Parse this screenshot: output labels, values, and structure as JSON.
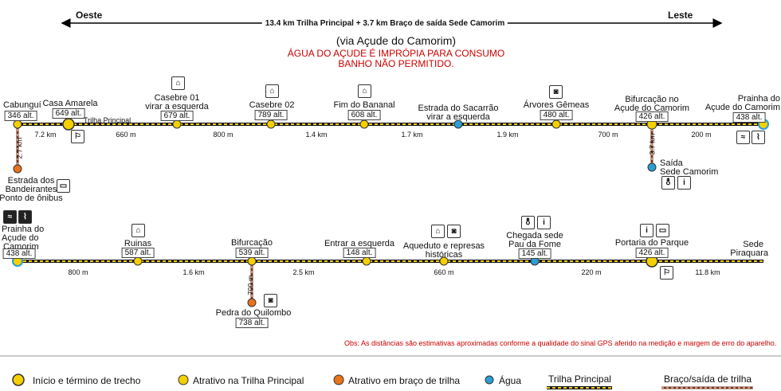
{
  "header": {
    "west": "Oeste",
    "east": "Leste",
    "total": "13.4 km Trilha Principal + 3.7 km Braço de saída Sede Camorim",
    "via": "(via Açude do Camorim)",
    "warning1": "ÁGUA DO AÇUDE É IMPRÓPIA PARA CONSUMO",
    "warning2": "BANHO NÃO PERMITIDO."
  },
  "row1": {
    "cabungui": {
      "name": "Cabunguí",
      "alt": "346 alt."
    },
    "casa_amarela": {
      "name": "Casa Amarela",
      "alt": "649 alt."
    },
    "trilha_label": "Trilha Principal",
    "casebre01": {
      "name1": "Casebre 01",
      "name2": "virar a esquerda",
      "alt": "679 alt."
    },
    "casebre02": {
      "name": "Casebre 02",
      "alt": "789 alt."
    },
    "bananal": {
      "name": "Fim do Bananal",
      "alt": "608 alt."
    },
    "sacarrao": {
      "name1": "Estrada do Sacarrão",
      "name2": "virar a esquerda"
    },
    "gemeas": {
      "name": "Árvores Gêmeas",
      "alt": "480 alt."
    },
    "bifurcacao": {
      "name1": "Bifurcação no",
      "name2": "Açude do Camorim",
      "alt": "426 alt."
    },
    "prainha": {
      "name1": "Prainha do",
      "name2": "Açude do Camorim",
      "alt": "438 alt."
    },
    "bandeirantes": {
      "name1": "Estrada dos",
      "name2": "Bandeirantes",
      "name3": "Ponto de ônibus"
    },
    "saida": {
      "name1": "Saída",
      "name2": "Sede Camorim"
    },
    "distances": [
      "7.2 km",
      "660 m",
      "800 m",
      "1.4 km",
      "1.7 km",
      "1.9 km",
      "700 m",
      "200 m"
    ],
    "branch_left": "2.7 km",
    "branch_right": "3.7 km"
  },
  "row2": {
    "prainha": {
      "name1": "Prainha do",
      "name2": "Açude do",
      "name3": "Camorim",
      "alt": "438 alt."
    },
    "ruinas": {
      "name": "Ruinas",
      "alt": "587 alt."
    },
    "bifurcacao": {
      "name": "Bifurcação",
      "alt": "539 alt."
    },
    "esquerda": {
      "name": "Entrar a esquerda",
      "alt": "148 alt."
    },
    "aqueduto": {
      "name1": "Aqueduto e represas",
      "name2": "históricas"
    },
    "pau_fome": {
      "name1": "Chegada sede",
      "name2": "Pau da Fome",
      "alt": "145 alt."
    },
    "portaria": {
      "name": "Portaria do Parque",
      "alt": "426 alt."
    },
    "piraquara": {
      "name1": "Sede",
      "name2": "Piraquara"
    },
    "quilombo": {
      "name": "Pedra do Quilombo",
      "alt": "738 alt."
    },
    "distances": [
      "800 m",
      "1.6 km",
      "2.5 km",
      "660 m",
      "220 m",
      "11.8 km"
    ],
    "branch": "700 m"
  },
  "note": "Obs:  As distâncias são estimativas aproximadas conforme a qualidade do sinal GPS aferido na medição e margem de erro do aparelho.",
  "legend": {
    "start_end": "Início e término de trecho",
    "main_attr": "Atrativo na Trilha Principal",
    "branch_attr": "Atrativo em braço de trilha",
    "water": "Água",
    "main_trail": "Trilha Principal",
    "branch_trail": "Braço/saída de trilha"
  },
  "colors": {
    "yellow": "#f5d000",
    "orange": "#e8731a",
    "water": "#2a9fd6",
    "branch": "#7a3318",
    "red": "#cc0000"
  }
}
